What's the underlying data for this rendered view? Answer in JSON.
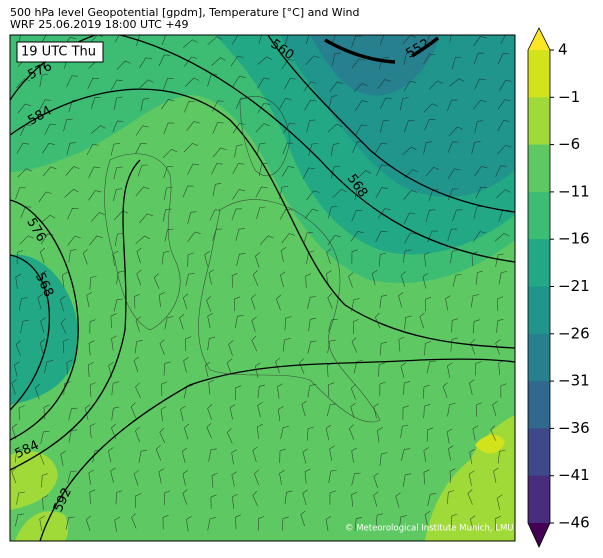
{
  "header": {
    "line1": "500 hPa level Geopotential [gpdm], Temperature [°C] and Wind",
    "line2": "WRF 25.06.2019 18:00 UTC +49"
  },
  "time_label": "19 UTC Thu",
  "colorbar": {
    "ticks": [
      4,
      {
        "value": -1,
        "label": "−1"
      },
      {
        "value": -6,
        "label": "−6"
      },
      {
        "value": -11,
        "label": "−11"
      },
      {
        "value": -16,
        "label": "−16"
      },
      {
        "value": -21,
        "label": "−21"
      },
      {
        "value": -26,
        "label": "−26"
      },
      {
        "value": -31,
        "label": "−31"
      },
      {
        "value": -36,
        "label": "−36"
      },
      {
        "value": -41,
        "label": "−41"
      },
      {
        "value": -46,
        "label": "−46"
      }
    ],
    "colors": [
      "#fde725",
      "#d2e21b",
      "#a0da39",
      "#5ec962",
      "#3dbc74",
      "#22a884",
      "#1f958b",
      "#27808e",
      "#31688e",
      "#3e4989",
      "#472d7b",
      "#440154"
    ]
  },
  "contour_labels": [
    "560",
    "552",
    "576",
    "584",
    "576",
    "568",
    "568",
    "584",
    "592"
  ],
  "credit": "© Meteorological Institute Munich, LMU"
}
